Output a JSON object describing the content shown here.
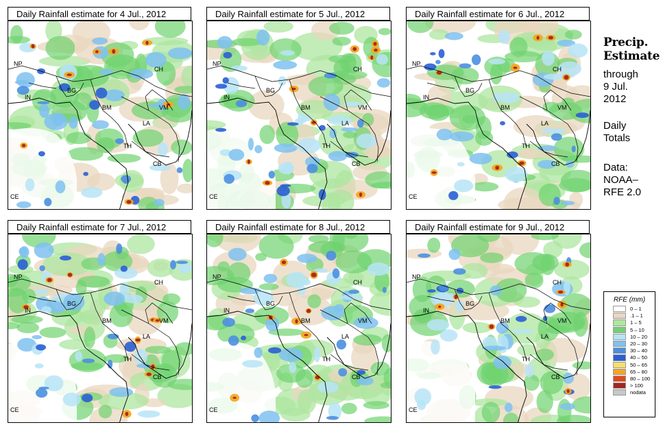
{
  "panels": [
    {
      "title": "Daily Rainfall estimate for  4 Jul., 2012",
      "intensity": 0.85,
      "seed": 4
    },
    {
      "title": "Daily Rainfall estimate for  5 Jul., 2012",
      "intensity": 1.0,
      "seed": 5
    },
    {
      "title": "Daily Rainfall estimate for  6 Jul., 2012",
      "intensity": 0.8,
      "seed": 6
    },
    {
      "title": "Daily Rainfall estimate for  7 Jul., 2012",
      "intensity": 0.9,
      "seed": 7
    },
    {
      "title": "Daily Rainfall estimate for  8 Jul., 2012",
      "intensity": 0.85,
      "seed": 8
    },
    {
      "title": "Daily Rainfall estimate for  9 Jul., 2012",
      "intensity": 0.75,
      "seed": 9
    }
  ],
  "map_labels": {
    "np": "NP",
    "in": "IN",
    "bg": "BG",
    "ch": "CH",
    "bm": "BM",
    "vm": "VM",
    "la": "LA",
    "th": "TH",
    "cb": "CB",
    "ce": "CE"
  },
  "sidebar": {
    "heading_line1": "Precip.",
    "heading_line2": "Estimate",
    "through": "through",
    "date_line1": "9 Jul.",
    "date_line2": "2012",
    "daily": "Daily",
    "totals": "Totals",
    "data_label": "Data:",
    "source_line1": "NOAA–",
    "source_line2": "RFE 2.0"
  },
  "legend": {
    "title": "RFE (mm)",
    "items": [
      {
        "label": "0 – 1",
        "color": "#ffffff"
      },
      {
        "label": ".1 – 1",
        "color": "#ead7bf"
      },
      {
        "label": "1 – 5",
        "color": "#aee6a0"
      },
      {
        "label": "5 – 10",
        "color": "#6fd36f"
      },
      {
        "label": "10 – 20",
        "color": "#b7e4f7"
      },
      {
        "label": "20 – 30",
        "color": "#7fc1f0"
      },
      {
        "label": "30 – 40",
        "color": "#4b8fe0"
      },
      {
        "label": "40 – 50",
        "color": "#2a5fd4"
      },
      {
        "label": "50 – 65",
        "color": "#f7e06a"
      },
      {
        "label": "65 – 80",
        "color": "#f5a623"
      },
      {
        "label": "80 – 100",
        "color": "#e8471c"
      },
      {
        "label": "> 100",
        "color": "#a0281e"
      },
      {
        "label": "nodata",
        "color": "#c8c8c8"
      }
    ]
  }
}
